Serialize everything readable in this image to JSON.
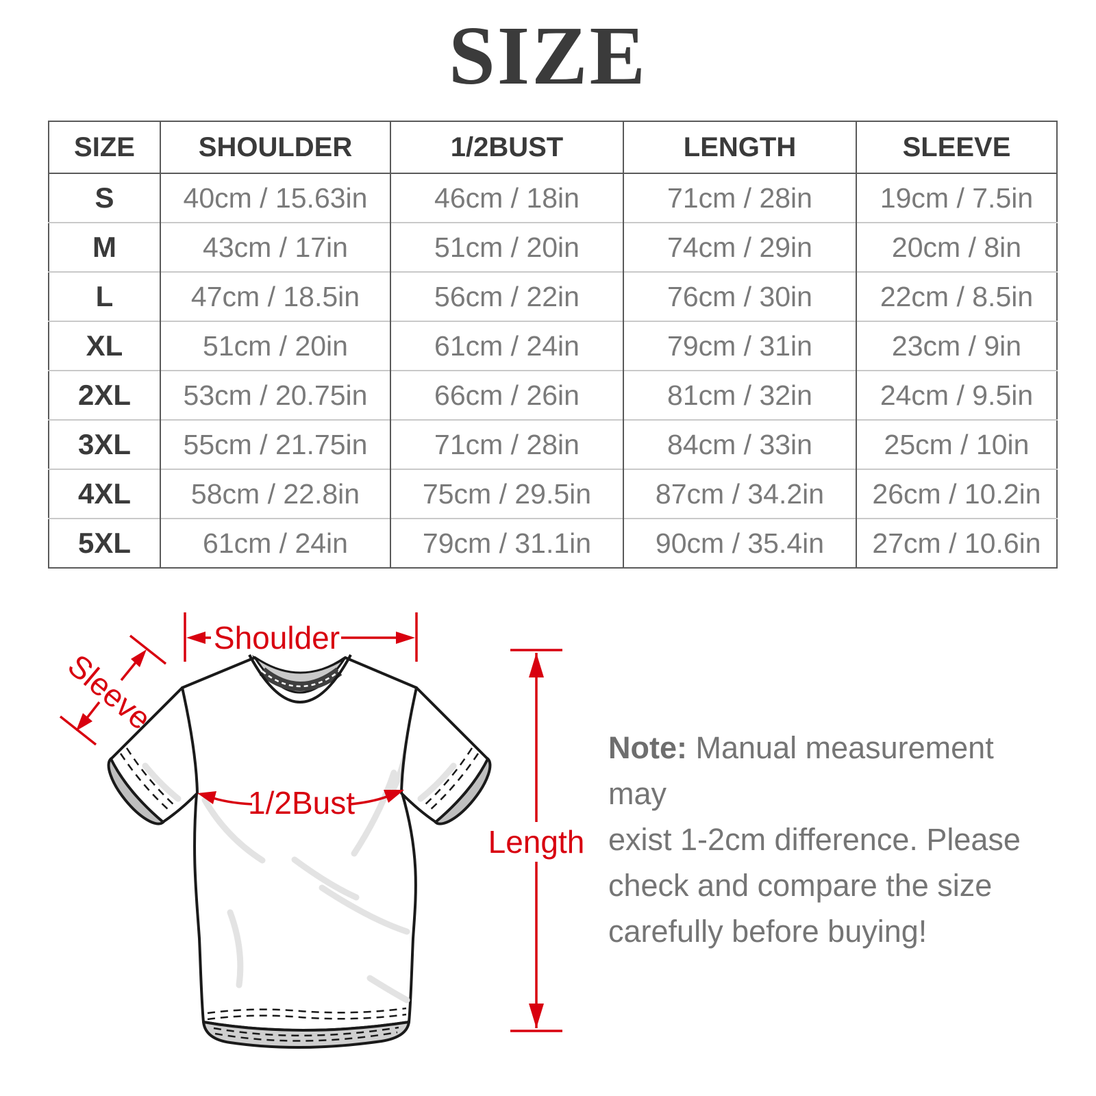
{
  "title": "SIZE",
  "table": {
    "headers": [
      "SIZE",
      "SHOULDER",
      "1/2BUST",
      "LENGTH",
      "SLEEVE"
    ],
    "rows": [
      [
        "S",
        "40cm / 15.63in",
        "46cm / 18in",
        "71cm / 28in",
        "19cm / 7.5in"
      ],
      [
        "M",
        "43cm / 17in",
        "51cm / 20in",
        "74cm / 29in",
        "20cm / 8in"
      ],
      [
        "L",
        "47cm / 18.5in",
        "56cm / 22in",
        "76cm / 30in",
        "22cm / 8.5in"
      ],
      [
        "XL",
        "51cm / 20in",
        "61cm / 24in",
        "79cm / 31in",
        "23cm / 9in"
      ],
      [
        "2XL",
        "53cm / 20.75in",
        "66cm / 26in",
        "81cm / 32in",
        "24cm / 9.5in"
      ],
      [
        "3XL",
        "55cm / 21.75in",
        "71cm / 28in",
        "84cm / 33in",
        "25cm / 10in"
      ],
      [
        "4XL",
        "58cm / 22.8in",
        "75cm / 29.5in",
        "87cm / 34.2in",
        "26cm / 10.2in"
      ],
      [
        "5XL",
        "61cm / 24in",
        "79cm / 31.1in",
        "90cm / 35.4in",
        "27cm / 10.6in"
      ]
    ]
  },
  "diagram": {
    "labels": {
      "shoulder": "Shoulder",
      "sleeve": "Sleeve",
      "half_bust": "1/2Bust",
      "length": "Length"
    },
    "annotation_color": "#d8000f"
  },
  "note": {
    "label": "Note:",
    "lines": [
      "Manual measurement may",
      "exist 1-2cm difference. Please",
      "check and compare the size",
      "carefully before buying!"
    ]
  }
}
